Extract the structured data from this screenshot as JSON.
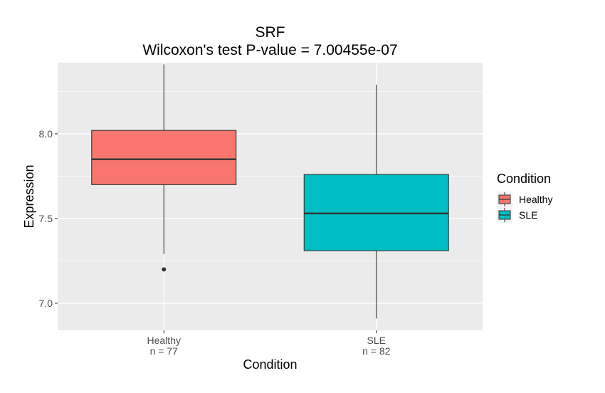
{
  "chart_data": {
    "type": "box",
    "title": "SRF",
    "subtitle": "Wilcoxon's test P-value = 7.00455e-07",
    "xlabel": "Condition",
    "ylabel": "Expression",
    "ylim": [
      6.84,
      8.42
    ],
    "y_ticks": [
      7.0,
      7.5,
      8.0
    ],
    "y_tick_labels": [
      "7.0",
      "7.5",
      "8.0"
    ],
    "grid": true,
    "legend": {
      "title": "Condition",
      "placement": "right",
      "entries": [
        "Healthy",
        "SLE"
      ]
    },
    "categories": [
      "Healthy",
      "SLE"
    ],
    "category_counts": [
      "n = 77",
      "n = 82"
    ],
    "colors": {
      "Healthy": "#F8766D",
      "SLE": "#00BFC4"
    },
    "boxes": [
      {
        "name": "Healthy",
        "min": 7.29,
        "q1": 7.7,
        "median": 7.85,
        "q3": 8.02,
        "max": 8.41,
        "outliers": [
          7.2
        ]
      },
      {
        "name": "SLE",
        "min": 6.91,
        "q1": 7.31,
        "median": 7.53,
        "q3": 7.76,
        "max": 8.29,
        "outliers": []
      }
    ]
  }
}
